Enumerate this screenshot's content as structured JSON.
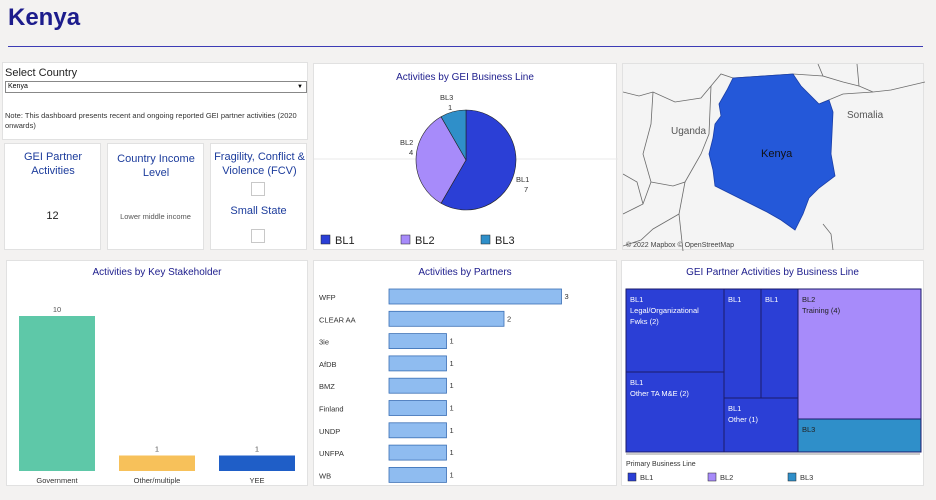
{
  "page": {
    "title": "Kenya"
  },
  "filter": {
    "label": "Select Country",
    "selected": "Kenya",
    "note": "Note: This dashboard presents recent and ongoing reported GEI partner activities (2020 onwards)"
  },
  "kpis": {
    "partner_activities": {
      "title": "GEI Partner Activities",
      "value": "12"
    },
    "income_level": {
      "title": "Country Income Level",
      "value": "Lower middle income"
    },
    "fcv": {
      "title": "Fragility, Conflict & Violence (FCV)"
    },
    "small_state": {
      "title": "Small State"
    }
  },
  "pie": {
    "title": "Activities by GEI Business Line",
    "labels": [
      {
        "name": "BL1",
        "value": "7"
      },
      {
        "name": "BL2",
        "value": "4"
      },
      {
        "name": "BL3",
        "value": "1"
      }
    ],
    "legend": [
      "BL1",
      "BL2",
      "BL3"
    ]
  },
  "map": {
    "labels": {
      "uganda": "Uganda",
      "somalia": "Somalia",
      "kenya": "Kenya"
    },
    "attribution": "© 2022 Mapbox © OpenStreetMap"
  },
  "stakeholder": {
    "title": "Activities by Key Stakeholder",
    "categories": [
      "Government",
      "Other/multiple",
      "YEE"
    ],
    "values": [
      "10",
      "1",
      "1"
    ]
  },
  "partners": {
    "title": "Activities by Partners",
    "rows": [
      {
        "name": "WFP",
        "value": "3"
      },
      {
        "name": "CLEAR AA",
        "value": "2"
      },
      {
        "name": "3ie",
        "value": "1"
      },
      {
        "name": "AfDB",
        "value": "1"
      },
      {
        "name": "BMZ",
        "value": "1"
      },
      {
        "name": "Finland",
        "value": "1"
      },
      {
        "name": "UNDP",
        "value": "1"
      },
      {
        "name": "UNFPA",
        "value": "1"
      },
      {
        "name": "WB",
        "value": "1"
      }
    ]
  },
  "treemap": {
    "title": "GEI Partner Activities by Business Line",
    "cells": [
      {
        "label": "BL1",
        "sub": "Legal/Organizational Fwks (2)"
      },
      {
        "label": "BL1",
        "sub": "Other TA M&E (2)"
      },
      {
        "label": "BL1",
        "sub": ""
      },
      {
        "label": "BL1",
        "sub": ""
      },
      {
        "label": "BL1",
        "sub": "Other (1)"
      },
      {
        "label": "BL2",
        "sub": "Training (4)"
      },
      {
        "label": "BL3",
        "sub": ""
      }
    ],
    "legend_title": "Primary Business Line",
    "legend": [
      "BL1",
      "BL2",
      "BL3"
    ]
  },
  "chart_data": [
    {
      "type": "pie",
      "title": "Activities by GEI Business Line",
      "categories": [
        "BL1",
        "BL2",
        "BL3"
      ],
      "values": [
        7,
        4,
        1
      ]
    },
    {
      "type": "bar",
      "title": "Activities by Key Stakeholder",
      "categories": [
        "Government",
        "Other/multiple",
        "YEE"
      ],
      "values": [
        10,
        1,
        1
      ]
    },
    {
      "type": "bar",
      "title": "Activities by Partners",
      "categories": [
        "WFP",
        "CLEAR AA",
        "3ie",
        "AfDB",
        "BMZ",
        "Finland",
        "UNDP",
        "UNFPA",
        "WB"
      ],
      "values": [
        3,
        2,
        1,
        1,
        1,
        1,
        1,
        1,
        1
      ]
    }
  ],
  "colors": {
    "bl1": "#2b3fd6",
    "bl2": "#a78bfa",
    "bl3": "#2f8fc9",
    "government": "#5ec8a8",
    "other": "#f7c15a",
    "yee": "#1f5ec7",
    "partner_bar": "#8fbcf0",
    "kenya": "#2458d9"
  }
}
